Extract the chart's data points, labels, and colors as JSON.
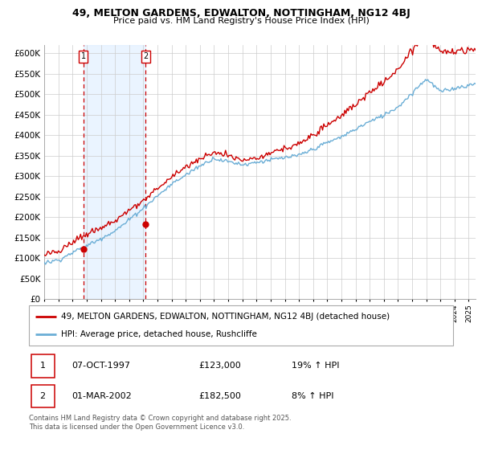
{
  "title1": "49, MELTON GARDENS, EDWALTON, NOTTINGHAM, NG12 4BJ",
  "title2": "Price paid vs. HM Land Registry's House Price Index (HPI)",
  "legend_line1": "49, MELTON GARDENS, EDWALTON, NOTTINGHAM, NG12 4BJ (detached house)",
  "legend_line2": "HPI: Average price, detached house, Rushcliffe",
  "sale1_date": "07-OCT-1997",
  "sale1_price": "£123,000",
  "sale1_hpi": "19% ↑ HPI",
  "sale1_year": 1997.77,
  "sale1_value": 123000,
  "sale2_date": "01-MAR-2002",
  "sale2_price": "£182,500",
  "sale2_hpi": "8% ↑ HPI",
  "sale2_year": 2002.17,
  "sale2_value": 182500,
  "footer": "Contains HM Land Registry data © Crown copyright and database right 2025.\nThis data is licensed under the Open Government Licence v3.0.",
  "hpi_color": "#6baed6",
  "price_color": "#cc0000",
  "vline_color": "#cc0000",
  "shade_color": "#ddeeff",
  "grid_color": "#cccccc",
  "bg_color": "#ffffff",
  "ylim_min": 0,
  "ylim_max": 620000,
  "ytick_step": 50000,
  "xmin": 1995.0,
  "xmax": 2025.5
}
